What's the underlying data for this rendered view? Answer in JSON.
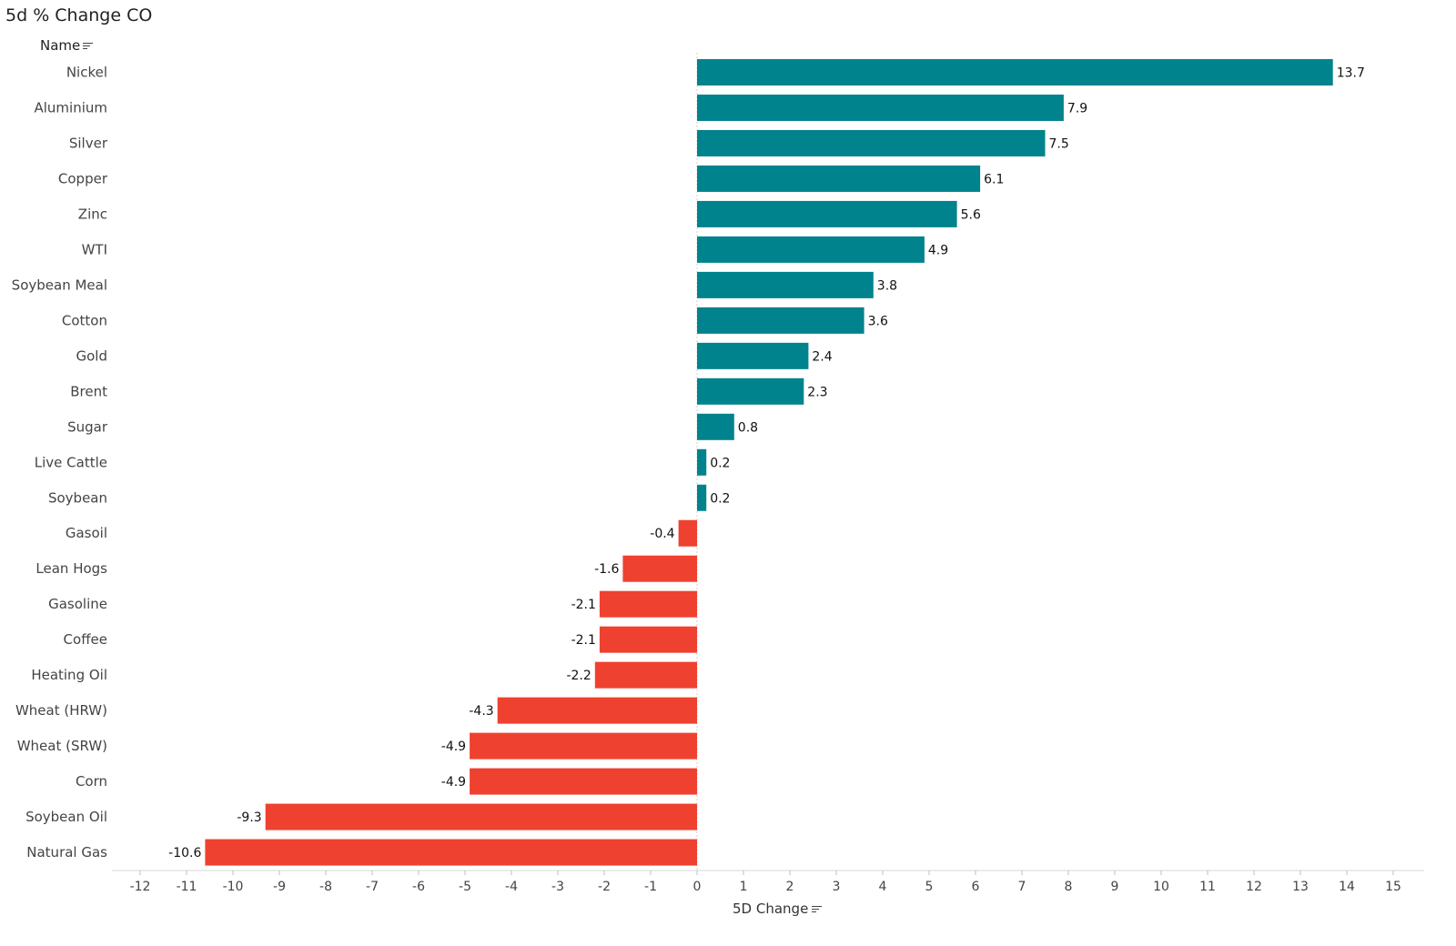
{
  "title": "5d % Change CO",
  "row_header": "Name",
  "x_axis_label": "5D Change",
  "colors": {
    "positive": "#00838c",
    "negative": "#ef4130",
    "text": "#444444",
    "grid": "#d9d9d9"
  },
  "icons": {
    "row_header_sort": "sort-icon",
    "x_axis_sort": "sort-icon"
  },
  "chart_data": {
    "type": "bar",
    "orientation": "horizontal",
    "title": "5d % Change CO",
    "xlabel": "5D Change",
    "ylabel": "Name",
    "xlim": [
      -12.5,
      15.7
    ],
    "x_ticks": [
      -12,
      -11,
      -10,
      -9,
      -8,
      -7,
      -6,
      -5,
      -4,
      -3,
      -2,
      -1,
      0,
      1,
      2,
      3,
      4,
      5,
      6,
      7,
      8,
      9,
      10,
      11,
      12,
      13,
      14,
      15
    ],
    "categories": [
      "Nickel",
      "Aluminium",
      "Silver",
      "Copper",
      "Zinc",
      "WTI",
      "Soybean Meal",
      "Cotton",
      "Gold",
      "Brent",
      "Sugar",
      "Live Cattle",
      "Soybean",
      "Gasoil",
      "Lean Hogs",
      "Gasoline",
      "Coffee",
      "Heating Oil",
      "Wheat (HRW)",
      "Wheat (SRW)",
      "Corn",
      "Soybean Oil",
      "Natural Gas"
    ],
    "values": [
      13.7,
      7.9,
      7.5,
      6.1,
      5.6,
      4.9,
      3.8,
      3.6,
      2.4,
      2.3,
      0.8,
      0.2,
      0.2,
      -0.4,
      -1.6,
      -2.1,
      -2.1,
      -2.2,
      -4.3,
      -4.9,
      -4.9,
      -9.3,
      -10.6
    ],
    "grid": false,
    "legend": "none",
    "data_labels": true
  }
}
